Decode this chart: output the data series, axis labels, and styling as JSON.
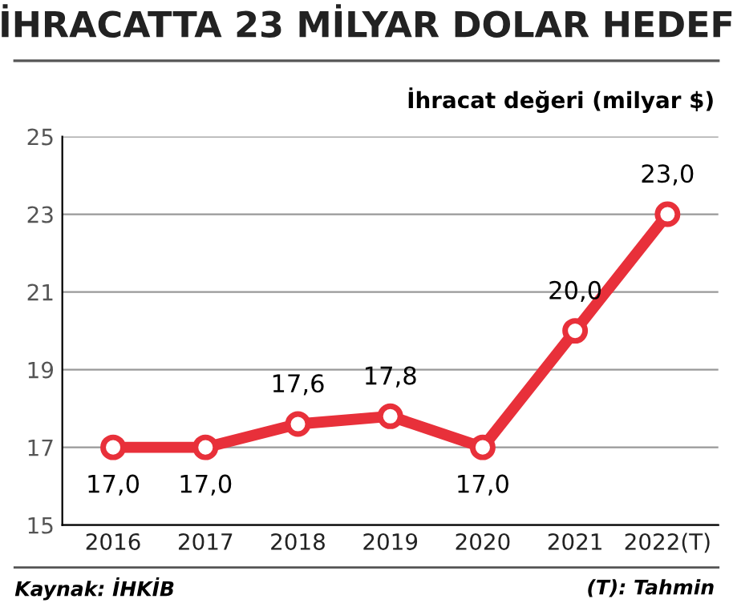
{
  "chart_data": {
    "type": "line",
    "title": "İHRACATTA 23 MİLYAR DOLAR HEDEF",
    "ylabel": "İhracat değeri (milyar $)",
    "categories": [
      "2016",
      "2017",
      "2018",
      "2019",
      "2020",
      "2021",
      "2022(T)"
    ],
    "series": [
      {
        "color": "#e8303a",
        "values": [
          17.0,
          17.0,
          17.6,
          17.8,
          17.0,
          20.0,
          23.0
        ],
        "value_labels": [
          "17,0",
          "17,0",
          "17,6",
          "17,8",
          "17,0",
          "20,0",
          "23,0"
        ]
      }
    ],
    "ylim": [
      15,
      25
    ],
    "yticks": [
      15,
      17,
      19,
      21,
      23,
      25
    ],
    "grid": "y",
    "marker": "circle",
    "line_style": "solid",
    "legend": false,
    "annotations": [
      "Kaynak: İHKİB",
      "(T): Tahmin"
    ]
  }
}
